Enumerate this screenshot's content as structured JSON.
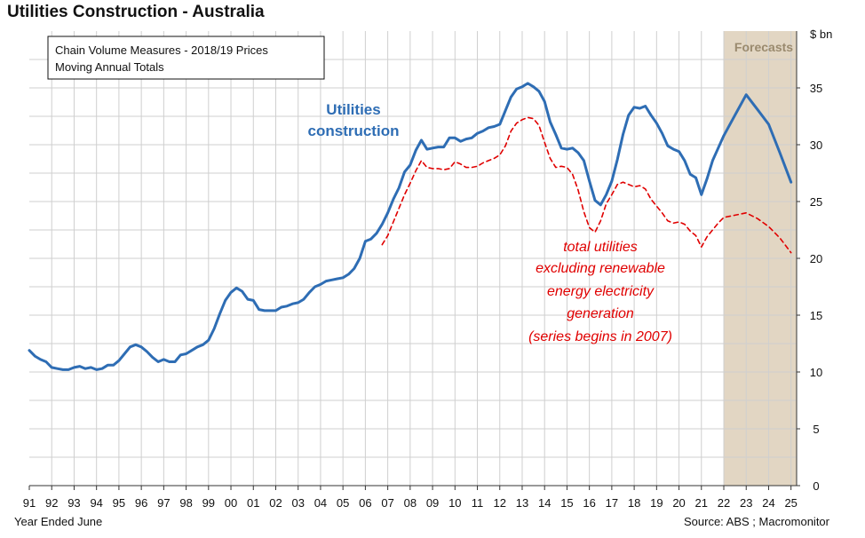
{
  "chart_data": {
    "type": "line",
    "title": "Utilities Construction - Australia",
    "subtitle_lines": [
      "Chain Volume Measures - 2018/19 Prices",
      "Moving Annual Totals"
    ],
    "xlabel": "Year Ended June",
    "ylabel": "$ bn",
    "source": "Source: ABS ; Macromonitor",
    "categories": [
      "91",
      "92",
      "93",
      "94",
      "95",
      "96",
      "97",
      "98",
      "99",
      "00",
      "01",
      "02",
      "03",
      "04",
      "05",
      "06",
      "07",
      "08",
      "09",
      "10",
      "11",
      "12",
      "13",
      "14",
      "15",
      "16",
      "17",
      "18",
      "19",
      "20",
      "21",
      "22",
      "23",
      "24",
      "25"
    ],
    "ylim": [
      0,
      40
    ],
    "yticks": [
      0,
      5,
      10,
      15,
      20,
      25,
      30,
      35
    ],
    "grid": true,
    "forecast": {
      "label": "Forecasts",
      "from_year": 2022.0,
      "to_year": 2025.0,
      "color": "#E2D6C3"
    },
    "series": [
      {
        "name": "Utilities construction",
        "label_lines": [
          "Utilities",
          "construction"
        ],
        "color": "#2E6DB4",
        "style": "solid",
        "x": [
          1991.0,
          1991.25,
          1991.5,
          1991.75,
          1992.0,
          1992.25,
          1992.5,
          1992.75,
          1993.0,
          1993.25,
          1993.5,
          1993.75,
          1994.0,
          1994.25,
          1994.5,
          1994.75,
          1995.0,
          1995.25,
          1995.5,
          1995.75,
          1996.0,
          1996.25,
          1996.5,
          1996.75,
          1997.0,
          1997.25,
          1997.5,
          1997.75,
          1998.0,
          1998.25,
          1998.5,
          1998.75,
          1999.0,
          1999.25,
          1999.5,
          1999.75,
          2000.0,
          2000.25,
          2000.5,
          2000.75,
          2001.0,
          2001.25,
          2001.5,
          2001.75,
          2002.0,
          2002.25,
          2002.5,
          2002.75,
          2003.0,
          2003.25,
          2003.5,
          2003.75,
          2004.0,
          2004.25,
          2004.5,
          2004.75,
          2005.0,
          2005.25,
          2005.5,
          2005.75,
          2006.0,
          2006.25,
          2006.5,
          2006.75,
          2007.0,
          2007.25,
          2007.5,
          2007.75,
          2008.0,
          2008.25,
          2008.5,
          2008.75,
          2009.0,
          2009.25,
          2009.5,
          2009.75,
          2010.0,
          2010.25,
          2010.5,
          2010.75,
          2011.0,
          2011.25,
          2011.5,
          2011.75,
          2012.0,
          2012.25,
          2012.5,
          2012.75,
          2013.0,
          2013.25,
          2013.5,
          2013.75,
          2014.0,
          2014.25,
          2014.5,
          2014.75,
          2015.0,
          2015.25,
          2015.5,
          2015.75,
          2016.0,
          2016.25,
          2016.5,
          2016.75,
          2017.0,
          2017.25,
          2017.5,
          2017.75,
          2018.0,
          2018.25,
          2018.5,
          2018.75,
          2019.0,
          2019.25,
          2019.5,
          2019.75,
          2020.0,
          2020.25,
          2020.5,
          2020.75,
          2021.0,
          2021.25,
          2021.5,
          2021.75,
          2022.0,
          2022.5,
          2023.0,
          2023.5,
          2024.0,
          2024.5,
          2025.0
        ],
        "values": [
          11.9,
          11.4,
          11.1,
          10.9,
          10.4,
          10.3,
          10.2,
          10.2,
          10.4,
          10.5,
          10.3,
          10.4,
          10.2,
          10.3,
          10.6,
          10.6,
          11.0,
          11.6,
          12.2,
          12.4,
          12.2,
          11.8,
          11.3,
          10.9,
          11.1,
          10.9,
          10.9,
          11.5,
          11.6,
          11.9,
          12.2,
          12.4,
          12.8,
          13.8,
          15.1,
          16.3,
          17.0,
          17.4,
          17.1,
          16.4,
          16.3,
          15.5,
          15.4,
          15.4,
          15.4,
          15.7,
          15.8,
          16.0,
          16.1,
          16.4,
          17.0,
          17.5,
          17.7,
          18.0,
          18.1,
          18.2,
          18.3,
          18.6,
          19.1,
          20.0,
          21.5,
          21.7,
          22.2,
          23.0,
          24.0,
          25.2,
          26.2,
          27.6,
          28.2,
          29.5,
          30.4,
          29.6,
          29.7,
          29.8,
          29.8,
          30.6,
          30.6,
          30.3,
          30.5,
          30.6,
          31.0,
          31.2,
          31.5,
          31.6,
          31.8,
          33.0,
          34.2,
          34.9,
          35.1,
          35.4,
          35.1,
          34.7,
          33.8,
          32.0,
          30.9,
          29.7,
          29.6,
          29.7,
          29.3,
          28.6,
          26.8,
          25.1,
          24.7,
          25.6,
          26.8,
          28.7,
          30.9,
          32.6,
          33.3,
          33.2,
          33.4,
          32.6,
          31.9,
          31.0,
          29.9,
          29.6,
          29.4,
          28.6,
          27.4,
          27.1,
          25.6,
          27.0,
          28.6,
          29.7,
          30.8,
          32.6,
          34.4,
          33.1,
          31.8,
          29.3,
          26.7
        ]
      },
      {
        "name": "total utilities excluding renewable energy electricity generation (series begins in 2007)",
        "label_lines": [
          "total utilities",
          "excluding  renewable",
          "energy electricity",
          "generation",
          "(series begins in 2007)"
        ],
        "color": "#E00000",
        "style": "dashed",
        "x": [
          2006.75,
          2007.0,
          2007.25,
          2007.5,
          2007.75,
          2008.0,
          2008.25,
          2008.5,
          2008.75,
          2009.0,
          2009.25,
          2009.5,
          2009.75,
          2010.0,
          2010.25,
          2010.5,
          2010.75,
          2011.0,
          2011.25,
          2011.5,
          2011.75,
          2012.0,
          2012.25,
          2012.5,
          2012.75,
          2013.0,
          2013.25,
          2013.5,
          2013.75,
          2014.0,
          2014.25,
          2014.5,
          2014.75,
          2015.0,
          2015.25,
          2015.5,
          2015.75,
          2016.0,
          2016.25,
          2016.5,
          2016.75,
          2017.0,
          2017.25,
          2017.5,
          2017.75,
          2018.0,
          2018.25,
          2018.5,
          2018.75,
          2019.0,
          2019.25,
          2019.5,
          2019.75,
          2020.0,
          2020.25,
          2020.5,
          2020.75,
          2021.0,
          2021.25,
          2021.5,
          2021.75,
          2022.0,
          2022.5,
          2023.0,
          2023.5,
          2024.0,
          2024.5,
          2025.0
        ],
        "values": [
          21.2,
          22.0,
          23.2,
          24.4,
          25.6,
          26.6,
          27.7,
          28.6,
          28.0,
          27.9,
          27.9,
          27.8,
          27.9,
          28.5,
          28.3,
          28.0,
          28.0,
          28.1,
          28.4,
          28.6,
          28.8,
          29.1,
          29.9,
          31.2,
          31.9,
          32.2,
          32.4,
          32.3,
          31.7,
          30.2,
          28.8,
          28.0,
          28.1,
          28.0,
          27.4,
          26.0,
          24.1,
          22.7,
          22.3,
          23.3,
          24.8,
          25.6,
          26.5,
          26.7,
          26.5,
          26.3,
          26.4,
          26.1,
          25.2,
          24.6,
          24.0,
          23.3,
          23.1,
          23.2,
          23.0,
          22.4,
          22.0,
          21.0,
          21.9,
          22.5,
          23.1,
          23.6,
          23.8,
          24.0,
          23.5,
          22.8,
          21.8,
          20.5
        ]
      }
    ]
  }
}
